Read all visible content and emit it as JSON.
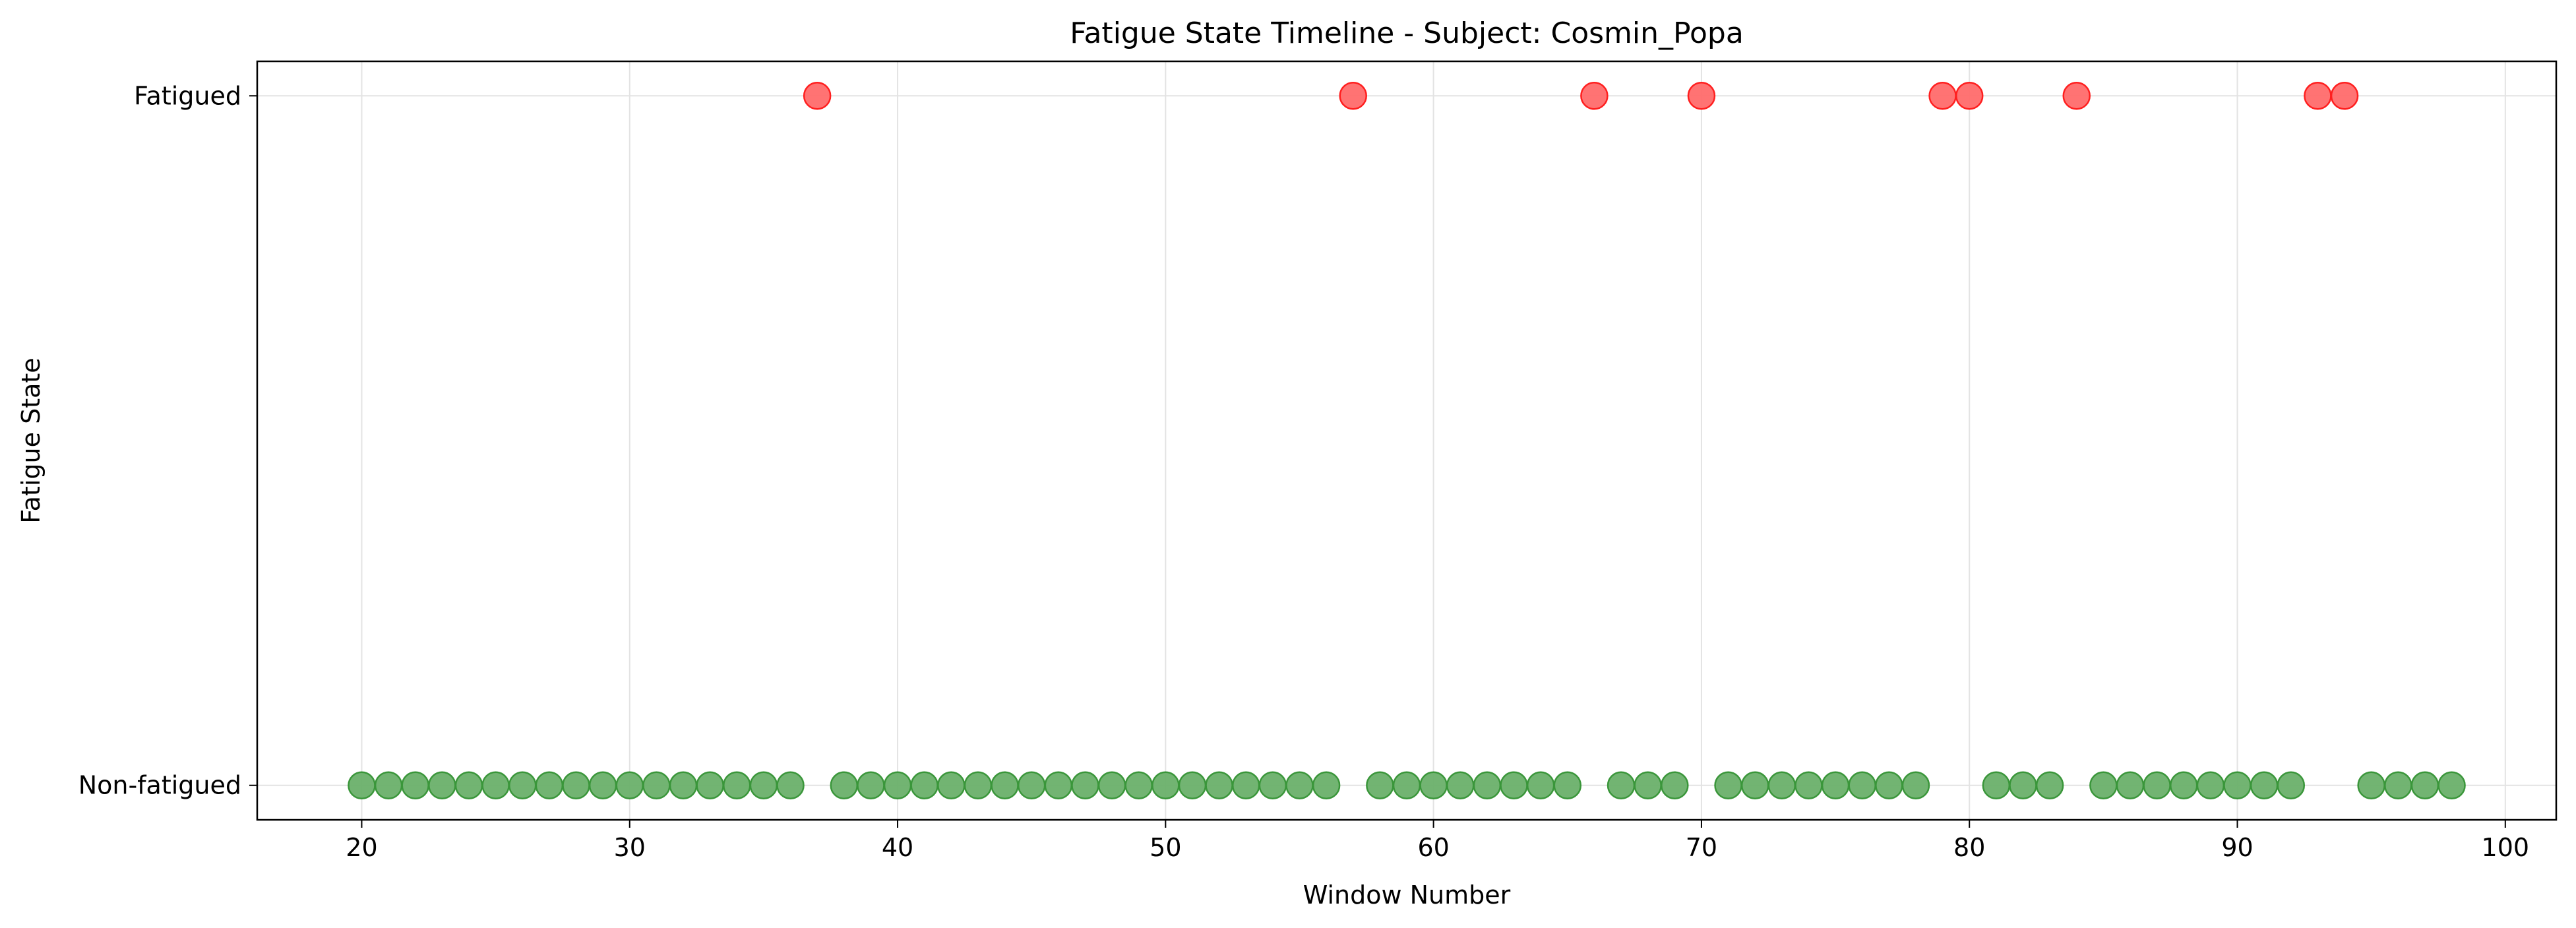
{
  "chart_data": {
    "type": "scatter",
    "title": "Fatigue State Timeline - Subject: Cosmin_Popa",
    "xlabel": "Window Number",
    "ylabel": "Fatigue State",
    "xlim": [
      16.1,
      101.9
    ],
    "ylim": [
      -0.05,
      1.05
    ],
    "xticks": [
      20,
      30,
      40,
      50,
      60,
      70,
      80,
      90,
      100
    ],
    "yticks": [
      {
        "value": 0,
        "label": "Non-fatigued"
      },
      {
        "value": 1,
        "label": "Fatigued"
      }
    ],
    "grid": true,
    "colors": {
      "fatigued": "#ff6b6b",
      "fatigued_edge": "#ff1f1f",
      "non_fatigued": "#6ab06a",
      "non_fatigued_edge": "#3a963a"
    },
    "fatigued_x": [
      37,
      57,
      66,
      70,
      79,
      80,
      84,
      93,
      94
    ],
    "non_fatigued_x": [
      20,
      21,
      22,
      23,
      24,
      25,
      26,
      27,
      28,
      29,
      30,
      31,
      32,
      33,
      34,
      35,
      36,
      38,
      39,
      40,
      41,
      42,
      43,
      44,
      45,
      46,
      47,
      48,
      49,
      50,
      51,
      52,
      53,
      54,
      55,
      56,
      58,
      59,
      60,
      61,
      62,
      63,
      64,
      65,
      67,
      68,
      69,
      71,
      72,
      73,
      74,
      75,
      76,
      77,
      78,
      81,
      82,
      83,
      85,
      86,
      87,
      88,
      89,
      90,
      91,
      92,
      95,
      96,
      97,
      98
    ]
  }
}
